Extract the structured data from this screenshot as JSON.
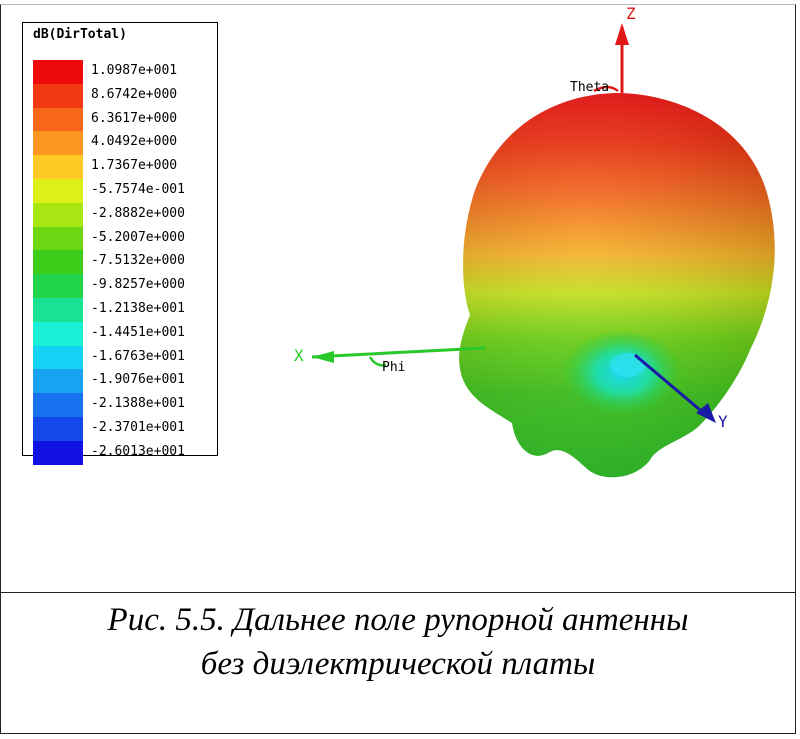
{
  "legend": {
    "title": "dB(DirTotal)",
    "entries": [
      {
        "label": "1.0987e+001",
        "color": "#ee0a0a"
      },
      {
        "label": "8.6742e+000",
        "color": "#f23a12"
      },
      {
        "label": "6.3617e+000",
        "color": "#f7661a"
      },
      {
        "label": "4.0492e+000",
        "color": "#fb9620"
      },
      {
        "label": "1.7367e+000",
        "color": "#ffca26"
      },
      {
        "label": "-5.7574e-001",
        "color": "#ddf018"
      },
      {
        "label": "-2.8882e+000",
        "color": "#a8e614"
      },
      {
        "label": "-5.2007e+000",
        "color": "#6ed612"
      },
      {
        "label": "-7.5132e+000",
        "color": "#3ccc1a"
      },
      {
        "label": "-9.8257e+000",
        "color": "#22d44a"
      },
      {
        "label": "-1.2138e+001",
        "color": "#1ae294"
      },
      {
        "label": "-1.4451e+001",
        "color": "#18f0d8"
      },
      {
        "label": "-1.6763e+001",
        "color": "#14d2f4"
      },
      {
        "label": "-1.9076e+001",
        "color": "#1aa2f2"
      },
      {
        "label": "-2.1388e+001",
        "color": "#1672ee"
      },
      {
        "label": "-2.3701e+001",
        "color": "#1448ea"
      },
      {
        "label": "-2.6013e+001",
        "color": "#1010e2"
      }
    ]
  },
  "axes": {
    "z_label": "Z",
    "x_label": "X",
    "y_label": "Y",
    "theta_label": "Theta",
    "phi_label": "Phi",
    "z_color": "#e01818",
    "x_color": "#28c828",
    "y_color": "#1a1aa8"
  },
  "caption": {
    "line1": "Рис. 5.5. Дальнее поле рупорной антенны",
    "line2": "без диэлектрической платы"
  }
}
